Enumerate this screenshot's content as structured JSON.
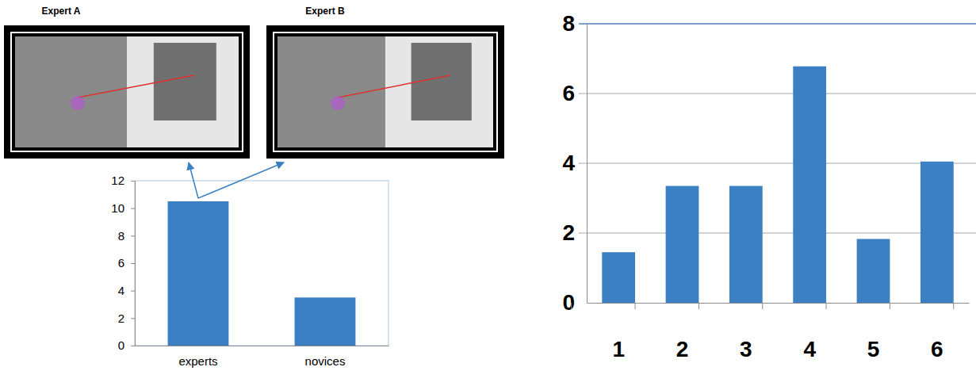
{
  "chart_data": [
    {
      "type": "bar",
      "annotations": [
        "Expert A",
        "Expert B"
      ],
      "categories": [
        "experts",
        "novices"
      ],
      "values": [
        10.5,
        3.5
      ],
      "color": "#3b80c2",
      "ylim": [
        0,
        12
      ],
      "yticks": [
        0,
        2,
        4,
        6,
        8,
        10,
        12
      ],
      "grid": false
    },
    {
      "type": "bar",
      "categories": [
        "1",
        "2",
        "3",
        "4",
        "5",
        "6"
      ],
      "values": [
        1.45,
        3.35,
        3.35,
        6.78,
        1.83,
        4.05
      ],
      "color": "#3b80c2",
      "ylim": [
        0,
        8
      ],
      "yticks": [
        0,
        2,
        4,
        6,
        8
      ],
      "grid": true
    }
  ]
}
